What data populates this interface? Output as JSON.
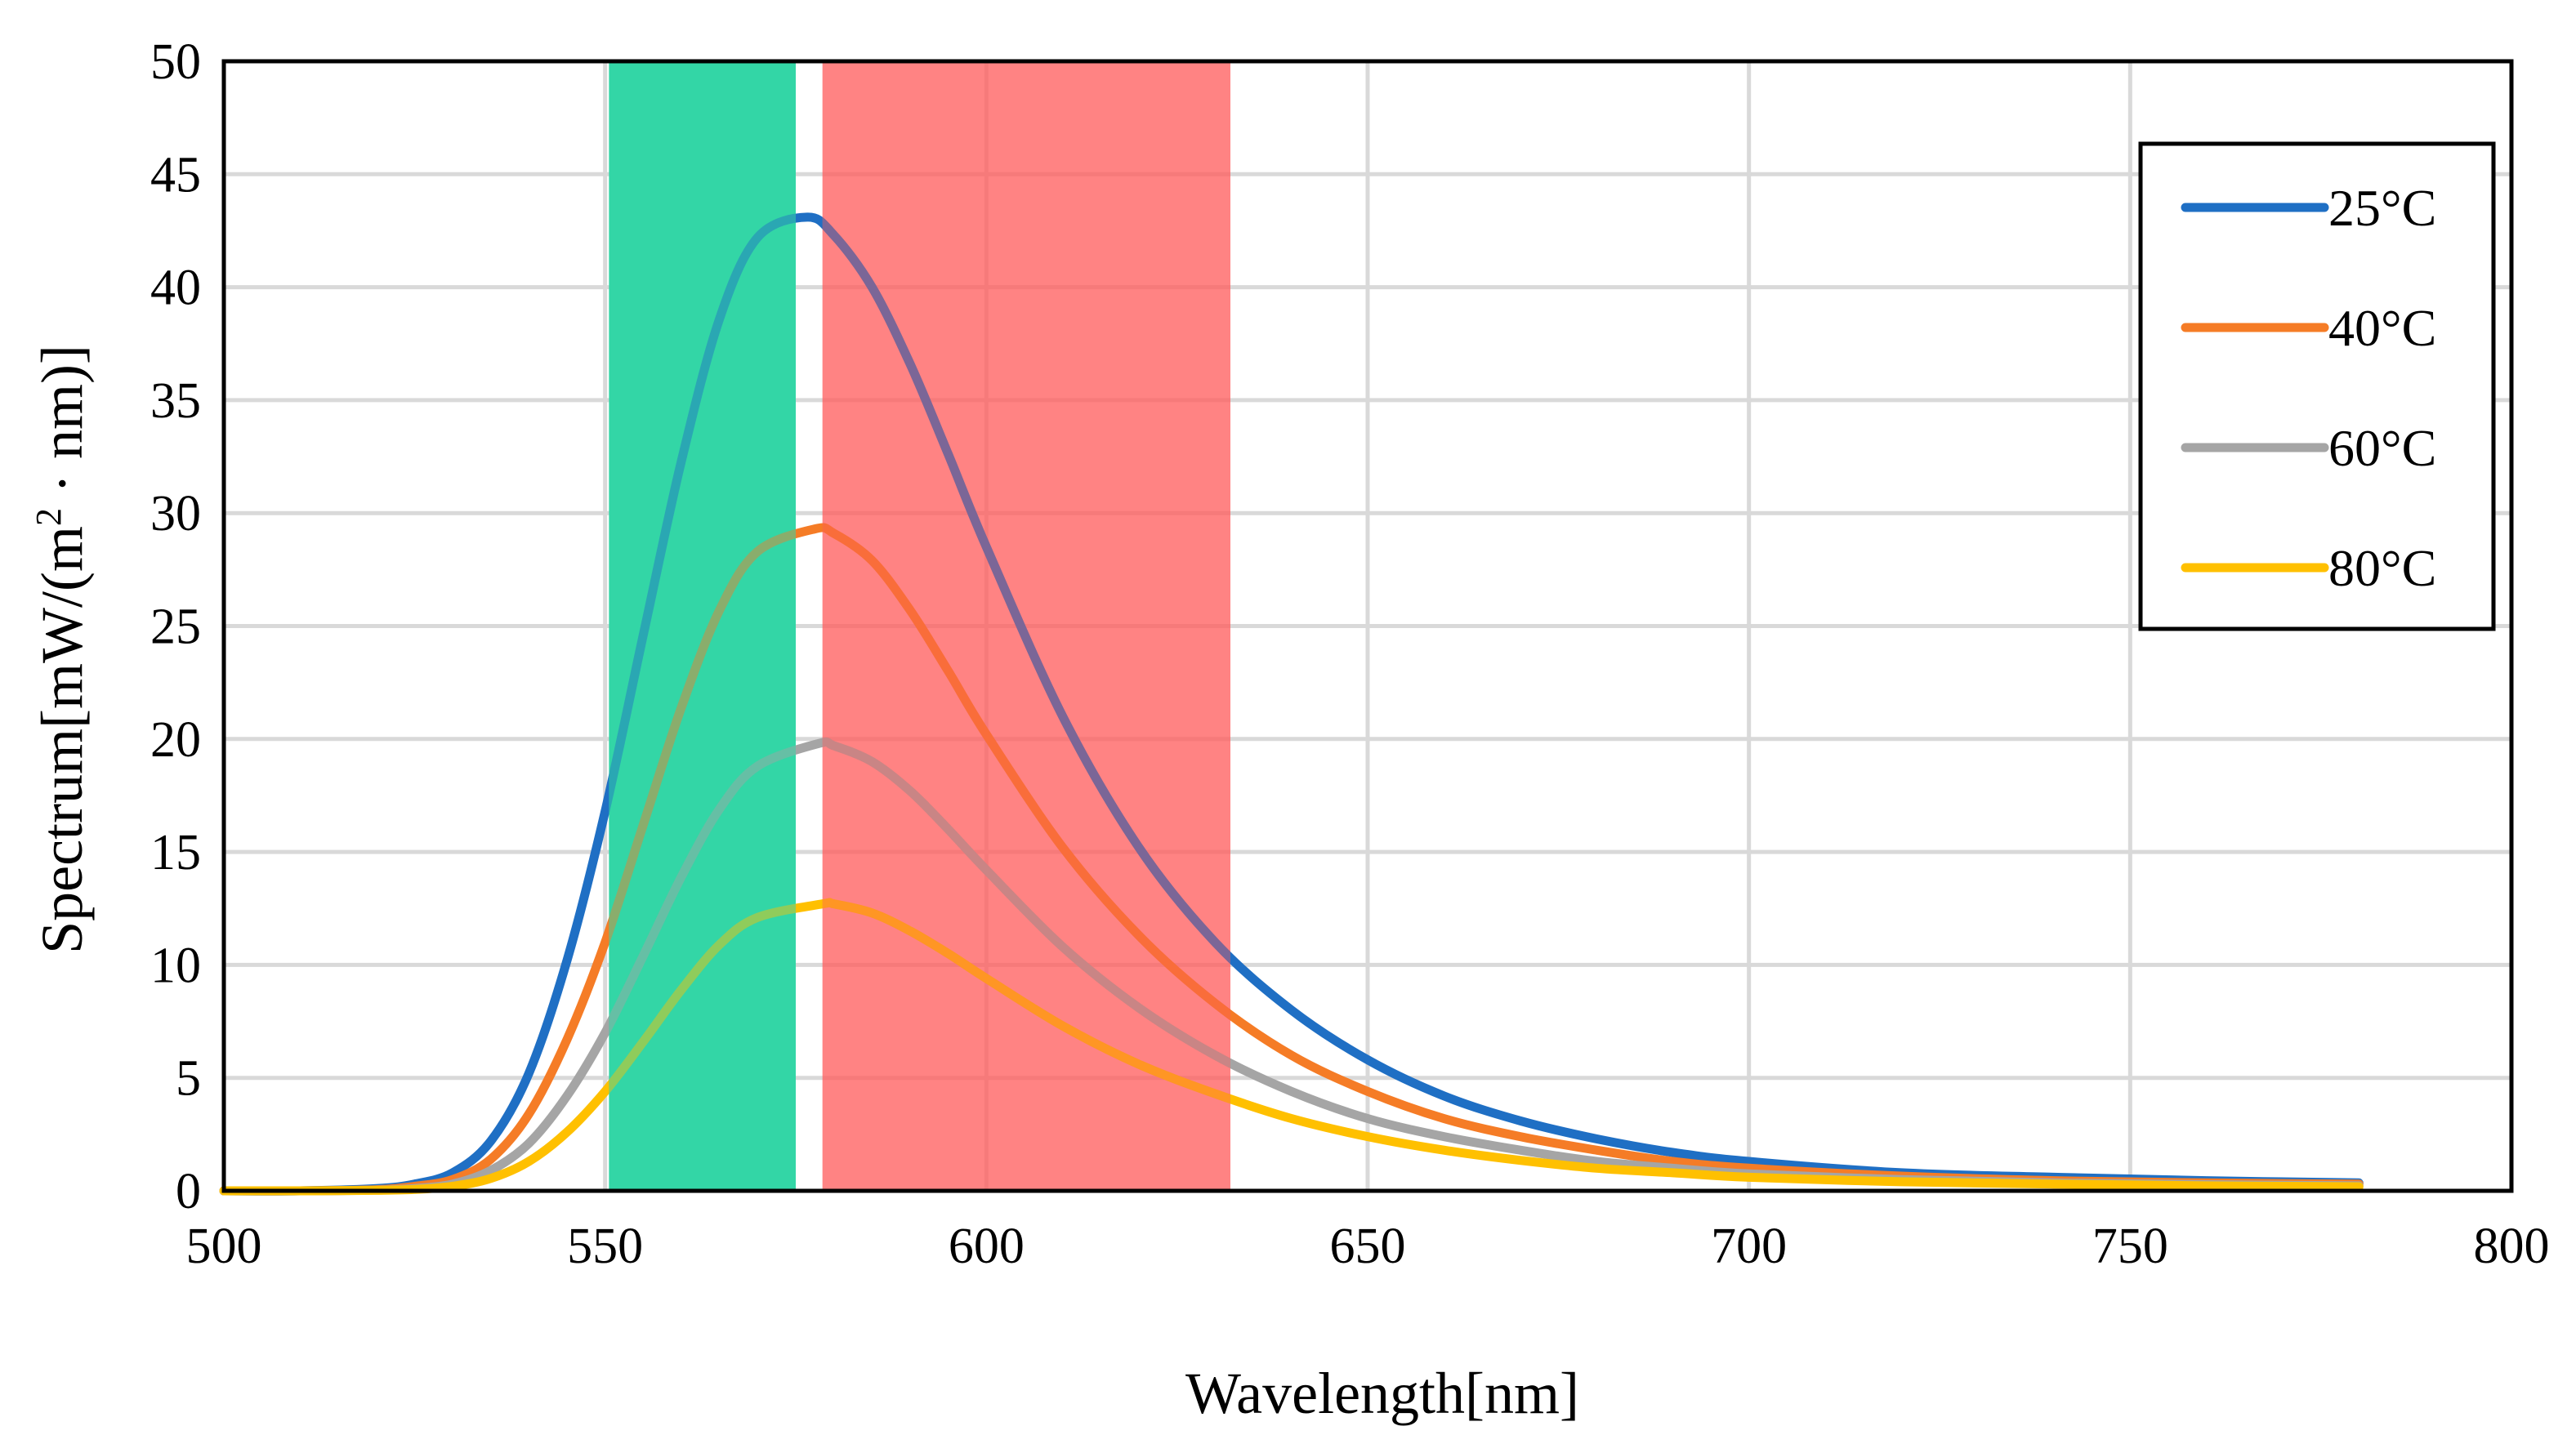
{
  "chart_data": {
    "type": "line",
    "title": "",
    "xlabel": "Wavelength[nm]",
    "ylabel": {
      "prefix": "Spectrum[mW/(m",
      "sup": "2",
      "suffix": " · nm)]"
    },
    "xlim": [
      500,
      800
    ],
    "ylim": [
      0,
      50
    ],
    "xticks": [
      500,
      550,
      600,
      650,
      700,
      750,
      800
    ],
    "yticks": [
      0,
      5,
      10,
      15,
      20,
      25,
      30,
      35,
      40,
      45,
      50
    ],
    "grid": true,
    "legend_position": "top-right",
    "bands": [
      {
        "name": "green-band",
        "x0": 550.5,
        "x1": 575,
        "color": "#33d6a6",
        "opacity": 1.0
      },
      {
        "name": "red-band",
        "x0": 578.5,
        "x1": 632,
        "color": "#ff5a5a",
        "opacity": 0.75
      }
    ],
    "series": [
      {
        "name": "25°C",
        "color": "#1f6fc4",
        "peak_x": 576.5,
        "peak_y": 43.1,
        "points": [
          [
            500,
            0
          ],
          [
            510,
            0
          ],
          [
            520,
            0.1
          ],
          [
            525,
            0.3
          ],
          [
            530,
            0.8
          ],
          [
            535,
            2.2
          ],
          [
            540,
            5.2
          ],
          [
            545,
            10.2
          ],
          [
            550,
            16.8
          ],
          [
            555,
            24.6
          ],
          [
            560,
            32.3
          ],
          [
            565,
            38.6
          ],
          [
            570,
            42.2
          ],
          [
            576.5,
            43.1
          ],
          [
            580,
            42.3
          ],
          [
            585,
            40.0
          ],
          [
            590,
            36.6
          ],
          [
            595,
            32.6
          ],
          [
            600,
            28.5
          ],
          [
            610,
            21.0
          ],
          [
            620,
            15.2
          ],
          [
            630,
            11.0
          ],
          [
            640,
            8.0
          ],
          [
            650,
            5.8
          ],
          [
            660,
            4.2
          ],
          [
            670,
            3.1
          ],
          [
            680,
            2.3
          ],
          [
            690,
            1.7
          ],
          [
            700,
            1.3
          ],
          [
            720,
            0.8
          ],
          [
            740,
            0.6
          ],
          [
            760,
            0.45
          ],
          [
            780,
            0.35
          ]
        ]
      },
      {
        "name": "40°C",
        "color": "#f57c26",
        "peak_x": 577.5,
        "peak_y": 29.3,
        "points": [
          [
            500,
            0
          ],
          [
            510,
            0
          ],
          [
            520,
            0.05
          ],
          [
            525,
            0.2
          ],
          [
            530,
            0.5
          ],
          [
            535,
            1.4
          ],
          [
            540,
            3.4
          ],
          [
            545,
            6.7
          ],
          [
            550,
            11.0
          ],
          [
            555,
            16.2
          ],
          [
            560,
            21.4
          ],
          [
            565,
            25.7
          ],
          [
            570,
            28.3
          ],
          [
            577.5,
            29.3
          ],
          [
            580,
            29.1
          ],
          [
            585,
            27.9
          ],
          [
            590,
            25.7
          ],
          [
            595,
            23.0
          ],
          [
            600,
            20.2
          ],
          [
            610,
            15.2
          ],
          [
            620,
            11.3
          ],
          [
            630,
            8.3
          ],
          [
            640,
            6.0
          ],
          [
            650,
            4.4
          ],
          [
            660,
            3.2
          ],
          [
            670,
            2.4
          ],
          [
            680,
            1.8
          ],
          [
            690,
            1.3
          ],
          [
            700,
            1.0
          ],
          [
            720,
            0.65
          ],
          [
            740,
            0.45
          ],
          [
            760,
            0.35
          ],
          [
            780,
            0.3
          ]
        ]
      },
      {
        "name": "60°C",
        "color": "#a5a5a5",
        "peak_x": 578,
        "peak_y": 19.8,
        "points": [
          [
            500,
            0
          ],
          [
            510,
            0
          ],
          [
            520,
            0.03
          ],
          [
            525,
            0.1
          ],
          [
            530,
            0.3
          ],
          [
            535,
            0.9
          ],
          [
            540,
            2.1
          ],
          [
            545,
            4.2
          ],
          [
            550,
            7.0
          ],
          [
            555,
            10.4
          ],
          [
            560,
            13.9
          ],
          [
            565,
            16.9
          ],
          [
            570,
            18.8
          ],
          [
            578,
            19.8
          ],
          [
            580,
            19.7
          ],
          [
            585,
            19.0
          ],
          [
            590,
            17.7
          ],
          [
            595,
            16.0
          ],
          [
            600,
            14.2
          ],
          [
            610,
            10.8
          ],
          [
            620,
            8.1
          ],
          [
            630,
            6.0
          ],
          [
            640,
            4.4
          ],
          [
            650,
            3.2
          ],
          [
            660,
            2.4
          ],
          [
            670,
            1.8
          ],
          [
            680,
            1.3
          ],
          [
            690,
            1.0
          ],
          [
            700,
            0.75
          ],
          [
            720,
            0.5
          ],
          [
            740,
            0.35
          ],
          [
            760,
            0.27
          ],
          [
            780,
            0.22
          ]
        ]
      },
      {
        "name": "80°C",
        "color": "#ffc000",
        "peak_x": 578.5,
        "peak_y": 12.7,
        "points": [
          [
            500,
            0
          ],
          [
            510,
            0
          ],
          [
            520,
            0.02
          ],
          [
            525,
            0.06
          ],
          [
            530,
            0.2
          ],
          [
            535,
            0.55
          ],
          [
            540,
            1.3
          ],
          [
            545,
            2.6
          ],
          [
            550,
            4.4
          ],
          [
            555,
            6.6
          ],
          [
            560,
            8.9
          ],
          [
            565,
            10.9
          ],
          [
            570,
            12.1
          ],
          [
            578.5,
            12.7
          ],
          [
            580,
            12.7
          ],
          [
            585,
            12.3
          ],
          [
            590,
            11.5
          ],
          [
            595,
            10.5
          ],
          [
            600,
            9.4
          ],
          [
            610,
            7.3
          ],
          [
            620,
            5.6
          ],
          [
            630,
            4.3
          ],
          [
            640,
            3.2
          ],
          [
            650,
            2.4
          ],
          [
            660,
            1.8
          ],
          [
            670,
            1.35
          ],
          [
            680,
            1.0
          ],
          [
            690,
            0.8
          ],
          [
            700,
            0.6
          ],
          [
            720,
            0.4
          ],
          [
            740,
            0.3
          ],
          [
            760,
            0.22
          ],
          [
            780,
            0.18
          ]
        ]
      }
    ]
  }
}
